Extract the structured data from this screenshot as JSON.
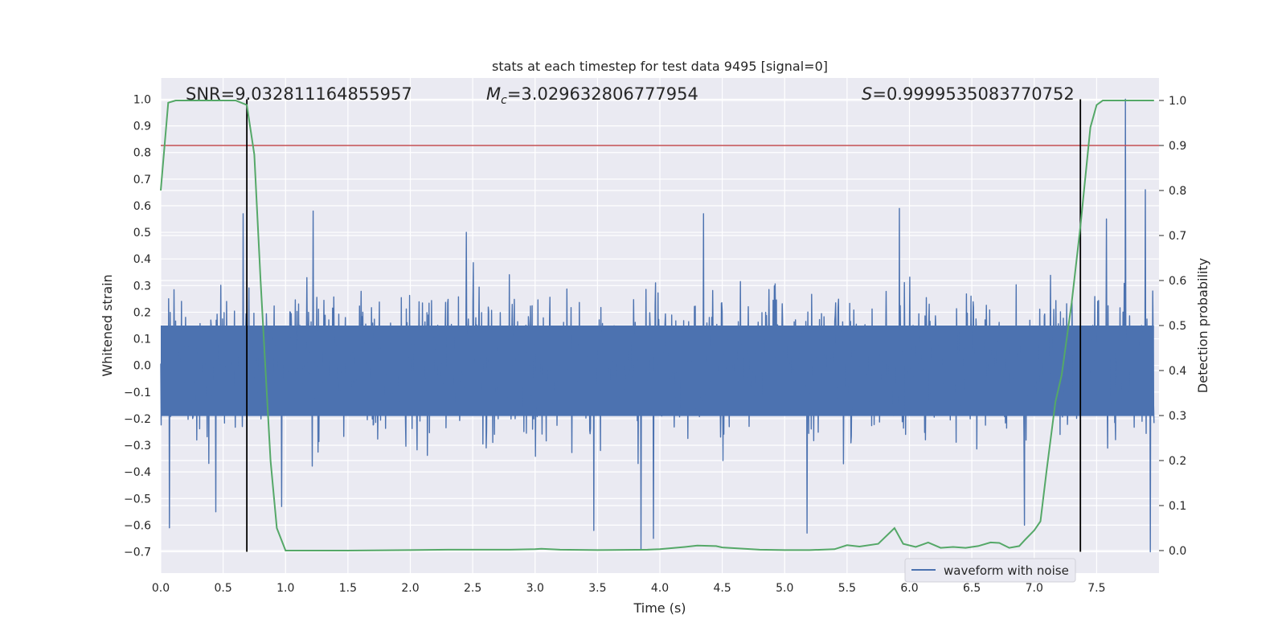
{
  "chart_data": {
    "type": "line",
    "title": "stats at each timestep for test data 9495 [signal=0]",
    "xlabel": "Time (s)",
    "ylabel": "Whitened strain",
    "y2label": "Detection probability",
    "xlim": [
      0.0,
      8.0
    ],
    "ylim": [
      -0.78,
      1.08
    ],
    "y2lim": [
      -0.05,
      1.05
    ],
    "xticks": [
      "0.0",
      "0.5",
      "1.0",
      "1.5",
      "2.0",
      "2.5",
      "3.0",
      "3.5",
      "4.0",
      "4.5",
      "5.0",
      "5.5",
      "6.0",
      "6.5",
      "7.0",
      "7.5"
    ],
    "yticks": [
      "1.0",
      "0.9",
      "0.8",
      "0.7",
      "0.6",
      "0.5",
      "0.4",
      "0.3",
      "0.2",
      "0.1",
      "0.0",
      "−0.1",
      "−0.2",
      "−0.3",
      "−0.4",
      "−0.5",
      "−0.6",
      "−0.7"
    ],
    "y2ticks": [
      "1.0",
      "0.9",
      "0.8",
      "0.7",
      "0.6",
      "0.5",
      "0.4",
      "0.3",
      "0.2",
      "0.1",
      "0.0"
    ],
    "grid": true,
    "legend_position": "lower-right",
    "annotations": {
      "snr_text": "SNR=9.032811164855957",
      "mc_symbol": "M",
      "mc_sub": "c",
      "mc_value": "=3.029632806777954",
      "s_symbol": "S",
      "s_value": "=0.9999535083770752"
    },
    "threshold": 0.9,
    "vertical_markers": [
      0.69,
      7.37
    ],
    "series": [
      {
        "name": "waveform with noise",
        "axis": "left",
        "color": "#4c72b0",
        "description_values": {
          "typical_envelope": [
            -0.38,
            0.45
          ],
          "peaks": [
            {
              "x": 0.07,
              "y": -0.61
            },
            {
              "x": 0.44,
              "y": -0.55
            },
            {
              "x": 0.66,
              "y": 0.57
            },
            {
              "x": 0.97,
              "y": -0.53
            },
            {
              "x": 1.22,
              "y": 0.58
            },
            {
              "x": 2.45,
              "y": 0.5
            },
            {
              "x": 3.47,
              "y": -0.62
            },
            {
              "x": 3.85,
              "y": -0.69
            },
            {
              "x": 3.95,
              "y": -0.65
            },
            {
              "x": 4.35,
              "y": 0.57
            },
            {
              "x": 5.18,
              "y": -0.63
            },
            {
              "x": 5.92,
              "y": 0.59
            },
            {
              "x": 6.92,
              "y": -0.6
            },
            {
              "x": 7.73,
              "y": 1.0
            },
            {
              "x": 7.89,
              "y": 0.66
            },
            {
              "x": 7.93,
              "y": -0.7
            },
            {
              "x": 7.58,
              "y": 0.55
            }
          ]
        }
      },
      {
        "name": "",
        "axis": "right",
        "color": "#55a868",
        "x": [
          0.0,
          0.06,
          0.12,
          0.2,
          0.3,
          0.4,
          0.5,
          0.6,
          0.69,
          0.75,
          0.8,
          0.88,
          0.93,
          1.0,
          1.5,
          2.0,
          2.3,
          2.8,
          3.0,
          3.05,
          3.2,
          3.5,
          3.9,
          4.0,
          4.2,
          4.3,
          4.45,
          4.5,
          4.8,
          5.0,
          5.2,
          5.4,
          5.5,
          5.6,
          5.75,
          5.88,
          5.95,
          6.05,
          6.15,
          6.25,
          6.35,
          6.45,
          6.55,
          6.65,
          6.72,
          6.8,
          6.88,
          6.93,
          7.0,
          7.05,
          7.1,
          7.17,
          7.22,
          7.3,
          7.37,
          7.45,
          7.5,
          7.55,
          7.7,
          7.96
        ],
        "y": [
          0.8,
          0.995,
          1.0,
          1.0,
          1.0,
          1.0,
          1.0,
          1.0,
          0.99,
          0.88,
          0.6,
          0.2,
          0.05,
          0.0,
          0.0,
          0.001,
          0.002,
          0.002,
          0.003,
          0.004,
          0.002,
          0.001,
          0.002,
          0.003,
          0.008,
          0.011,
          0.01,
          0.007,
          0.002,
          0.001,
          0.001,
          0.003,
          0.012,
          0.009,
          0.015,
          0.05,
          0.015,
          0.008,
          0.018,
          0.006,
          0.008,
          0.006,
          0.01,
          0.018,
          0.017,
          0.006,
          0.01,
          0.025,
          0.045,
          0.065,
          0.18,
          0.33,
          0.39,
          0.55,
          0.72,
          0.94,
          0.99,
          1.0,
          1.0,
          1.0
        ]
      },
      {
        "name": "",
        "axis": "right",
        "color": "#c44e52",
        "y": [
          0.9,
          0.9
        ]
      }
    ]
  },
  "colors": {
    "background": "#eaeaf2",
    "grid": "#ffffff",
    "marker_line": "#000000"
  }
}
